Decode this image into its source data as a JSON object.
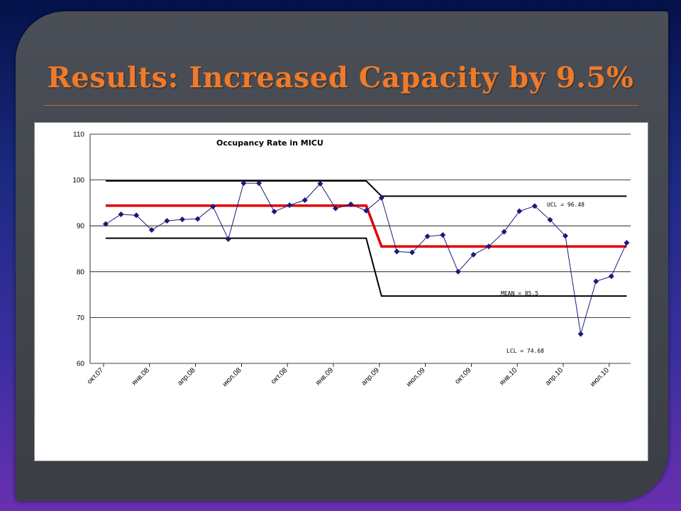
{
  "slide": {
    "title": "Results: Increased Capacity by 9.5%"
  },
  "chart_data": {
    "type": "line",
    "title": "Occupancy Rate in MICU",
    "xlabel": "",
    "ylabel": "",
    "ylim": [
      60,
      110
    ],
    "yticks": [
      60,
      70,
      80,
      90,
      100,
      110
    ],
    "grid": "horizontal",
    "x_tick_labels": [
      "окт.07",
      "янв.08",
      "апр.08",
      "июл.08",
      "окт.08",
      "янв.09",
      "апр.09",
      "июл.09",
      "окт.09",
      "янв.10",
      "апр.10",
      "июл.10"
    ],
    "x": [
      "окт.07",
      "ноя.07",
      "дек.07",
      "янв.08",
      "фев.08",
      "мар.08",
      "апр.08",
      "май.08",
      "июн.08",
      "июл.08",
      "авг.08",
      "сен.08",
      "окт.08",
      "ноя.08",
      "дек.08",
      "янв.09",
      "фев.09",
      "мар.09",
      "апр.09",
      "май.09",
      "июн.09",
      "июл.09",
      "авг.09",
      "сен.09",
      "окт.09",
      "ноя.09",
      "дек.09",
      "янв.10",
      "фев.10",
      "мар.10",
      "апр.10",
      "май.10",
      "июн.10",
      "июл.10",
      "авг.10"
    ],
    "series": [
      {
        "name": "",
        "color": "#1a1a7a",
        "marker": "diamond",
        "values": [
          90.4,
          92.5,
          92.3,
          89.1,
          91.1,
          91.4,
          91.5,
          94.2,
          87.1,
          99.3,
          99.3,
          93.1,
          94.5,
          95.6,
          99.2,
          93.8,
          94.7,
          93.3,
          96.1,
          84.4,
          84.2,
          87.7,
          88.0,
          80.0,
          83.7,
          85.5,
          88.7,
          93.2,
          94.3,
          91.3,
          87.8,
          66.4,
          77.9,
          79.0,
          86.3
        ]
      }
    ],
    "control_lines": [
      {
        "name": "UCL",
        "color": "#000000",
        "points": [
          [
            "окт.07",
            99.8
          ],
          [
            "мар.09",
            99.8
          ],
          [
            "апр.09",
            96.48
          ],
          [
            "авг.10",
            96.48
          ]
        ]
      },
      {
        "name": "MEAN",
        "color": "#e00000",
        "points": [
          [
            "окт.07",
            94.4
          ],
          [
            "мар.09",
            94.4
          ],
          [
            "апр.09",
            85.5
          ],
          [
            "авг.10",
            85.5
          ]
        ]
      },
      {
        "name": "LCL",
        "color": "#000000",
        "points": [
          [
            "окт.07",
            87.3
          ],
          [
            "мар.09",
            87.3
          ],
          [
            "апр.09",
            74.68
          ],
          [
            "авг.10",
            74.68
          ]
        ]
      }
    ],
    "annotations": {
      "ucl": "UCL = 96.48",
      "mean": "MEAN = 85.5",
      "lcl": "LCL = 74.68"
    }
  }
}
